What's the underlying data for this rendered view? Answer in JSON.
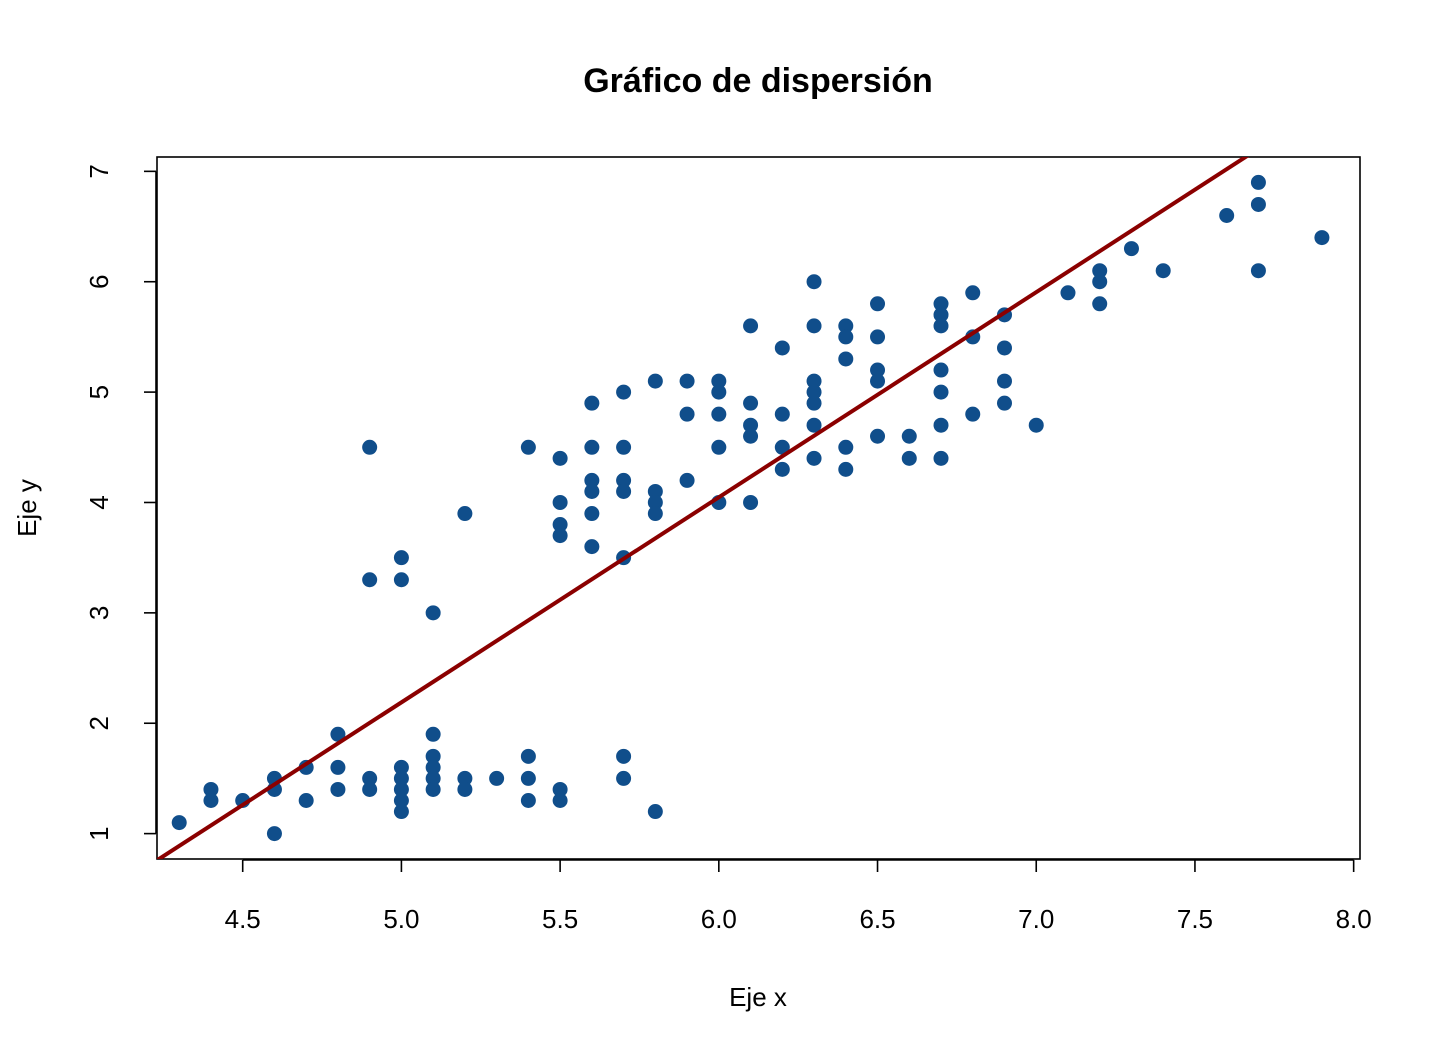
{
  "chart_data": {
    "type": "scatter",
    "title": "Gráfico de dispersión",
    "xlabel": "Eje x",
    "ylabel": "Eje y",
    "xlim": [
      4.23,
      8.02
    ],
    "ylim": [
      0.77,
      7.13
    ],
    "x_ticks": [
      "4.5",
      "5.0",
      "5.5",
      "6.0",
      "6.5",
      "7.0",
      "7.5",
      "8.0"
    ],
    "y_ticks": [
      "1",
      "2",
      "3",
      "4",
      "5",
      "6",
      "7"
    ],
    "grid": false,
    "legend": "none",
    "point_color": "#104E8B",
    "line_color": "#8B0000",
    "regression_line": {
      "slope": 1.858,
      "intercept": -7.101
    },
    "points": [
      [
        4.3,
        1.1
      ],
      [
        4.4,
        1.4
      ],
      [
        4.4,
        1.3
      ],
      [
        4.5,
        1.3
      ],
      [
        4.6,
        1.5
      ],
      [
        4.6,
        1.4
      ],
      [
        4.6,
        1.0
      ],
      [
        4.7,
        1.6
      ],
      [
        4.7,
        1.3
      ],
      [
        4.8,
        1.9
      ],
      [
        4.8,
        1.6
      ],
      [
        4.8,
        1.4
      ],
      [
        4.9,
        1.5
      ],
      [
        4.9,
        1.4
      ],
      [
        4.9,
        4.5
      ],
      [
        4.9,
        3.3
      ],
      [
        5.0,
        1.6
      ],
      [
        5.0,
        1.5
      ],
      [
        5.0,
        1.4
      ],
      [
        5.0,
        1.3
      ],
      [
        5.0,
        1.2
      ],
      [
        5.0,
        3.5
      ],
      [
        5.0,
        3.3
      ],
      [
        5.1,
        1.9
      ],
      [
        5.1,
        1.7
      ],
      [
        5.1,
        1.6
      ],
      [
        5.1,
        1.5
      ],
      [
        5.1,
        1.4
      ],
      [
        5.1,
        3.0
      ],
      [
        5.2,
        1.5
      ],
      [
        5.2,
        1.4
      ],
      [
        5.2,
        3.9
      ],
      [
        5.3,
        1.5
      ],
      [
        5.4,
        1.7
      ],
      [
        5.4,
        1.5
      ],
      [
        5.4,
        1.3
      ],
      [
        5.4,
        4.5
      ],
      [
        5.5,
        1.4
      ],
      [
        5.5,
        1.3
      ],
      [
        5.5,
        4.4
      ],
      [
        5.5,
        4.0
      ],
      [
        5.5,
        3.8
      ],
      [
        5.5,
        3.7
      ],
      [
        5.6,
        4.9
      ],
      [
        5.6,
        4.5
      ],
      [
        5.6,
        4.2
      ],
      [
        5.6,
        4.1
      ],
      [
        5.6,
        3.9
      ],
      [
        5.6,
        3.6
      ],
      [
        5.7,
        1.7
      ],
      [
        5.7,
        1.5
      ],
      [
        5.7,
        5.0
      ],
      [
        5.7,
        4.5
      ],
      [
        5.7,
        4.2
      ],
      [
        5.7,
        4.1
      ],
      [
        5.7,
        3.5
      ],
      [
        5.8,
        1.2
      ],
      [
        5.8,
        5.1
      ],
      [
        5.8,
        4.1
      ],
      [
        5.8,
        4.0
      ],
      [
        5.8,
        3.9
      ],
      [
        5.9,
        5.1
      ],
      [
        5.9,
        4.8
      ],
      [
        5.9,
        4.2
      ],
      [
        6.0,
        5.1
      ],
      [
        6.0,
        5.0
      ],
      [
        6.0,
        4.8
      ],
      [
        6.0,
        4.5
      ],
      [
        6.0,
        4.0
      ],
      [
        6.1,
        5.6
      ],
      [
        6.1,
        4.9
      ],
      [
        6.1,
        4.7
      ],
      [
        6.1,
        4.6
      ],
      [
        6.1,
        4.0
      ],
      [
        6.2,
        5.4
      ],
      [
        6.2,
        4.8
      ],
      [
        6.2,
        4.5
      ],
      [
        6.2,
        4.3
      ],
      [
        6.3,
        6.0
      ],
      [
        6.3,
        5.6
      ],
      [
        6.3,
        5.1
      ],
      [
        6.3,
        5.0
      ],
      [
        6.3,
        4.9
      ],
      [
        6.3,
        4.7
      ],
      [
        6.3,
        4.4
      ],
      [
        6.4,
        5.6
      ],
      [
        6.4,
        5.5
      ],
      [
        6.4,
        5.3
      ],
      [
        6.4,
        4.5
      ],
      [
        6.4,
        4.3
      ],
      [
        6.5,
        5.8
      ],
      [
        6.5,
        5.5
      ],
      [
        6.5,
        5.2
      ],
      [
        6.5,
        5.1
      ],
      [
        6.5,
        4.6
      ],
      [
        6.6,
        4.6
      ],
      [
        6.6,
        4.4
      ],
      [
        6.7,
        5.8
      ],
      [
        6.7,
        5.7
      ],
      [
        6.7,
        5.6
      ],
      [
        6.7,
        5.2
      ],
      [
        6.7,
        5.0
      ],
      [
        6.7,
        4.7
      ],
      [
        6.7,
        4.4
      ],
      [
        6.8,
        5.9
      ],
      [
        6.8,
        5.5
      ],
      [
        6.8,
        4.8
      ],
      [
        6.9,
        5.7
      ],
      [
        6.9,
        5.4
      ],
      [
        6.9,
        5.1
      ],
      [
        6.9,
        4.9
      ],
      [
        7.0,
        4.7
      ],
      [
        7.1,
        5.9
      ],
      [
        7.2,
        6.1
      ],
      [
        7.2,
        6.0
      ],
      [
        7.2,
        5.8
      ],
      [
        7.3,
        6.3
      ],
      [
        7.4,
        6.1
      ],
      [
        7.6,
        6.6
      ],
      [
        7.7,
        6.9
      ],
      [
        7.7,
        6.7
      ],
      [
        7.7,
        6.1
      ],
      [
        7.9,
        6.4
      ]
    ]
  }
}
